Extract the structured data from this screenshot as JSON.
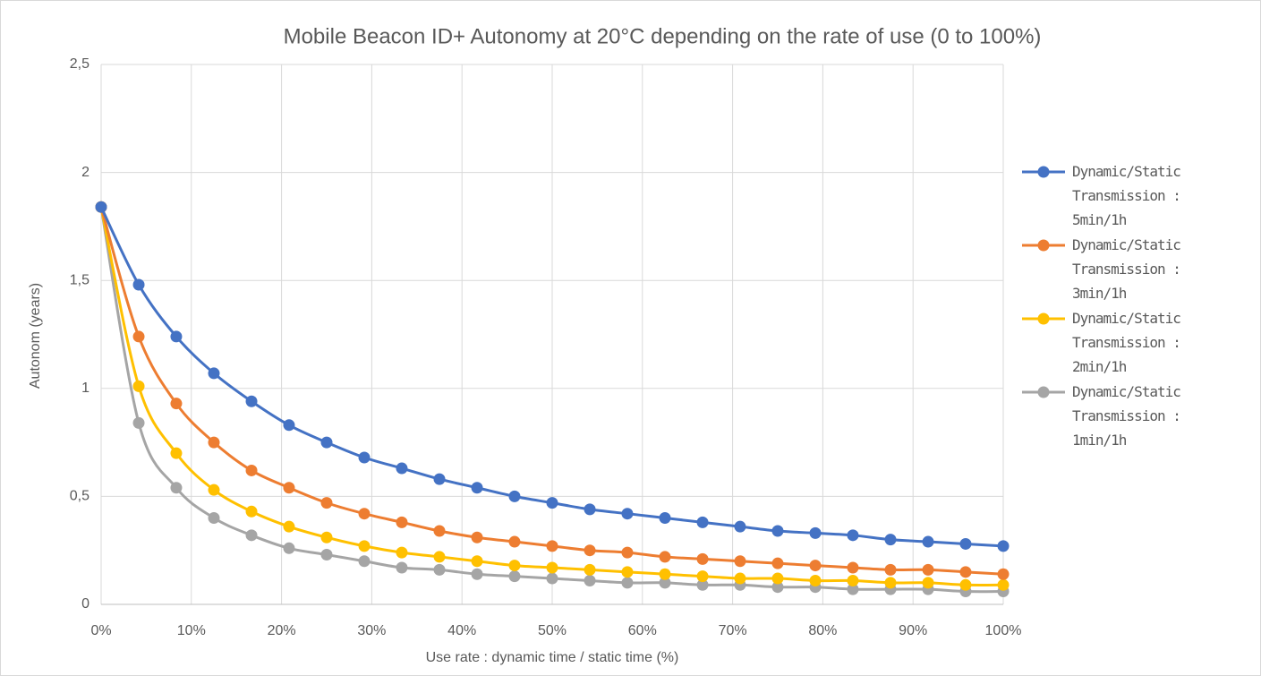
{
  "chart_data": {
    "type": "line",
    "title": "Mobile Beacon ID+ Autonomy at 20°C depending on the rate of use (0 to 100%)",
    "x_label": "Use rate : dynamic time / static time (%)",
    "y_label": "Autonom (years)",
    "x": [
      0,
      4.17,
      8.33,
      12.5,
      16.67,
      20.83,
      25,
      29.17,
      33.33,
      37.5,
      41.67,
      45.83,
      50,
      54.17,
      58.33,
      62.5,
      66.67,
      70.83,
      75,
      79.17,
      83.33,
      87.5,
      91.67,
      95.83,
      100
    ],
    "series": [
      {
        "name": "Dynamic/Static Transmission : 5min/1h",
        "color": "#4472c4",
        "values": [
          1.84,
          1.48,
          1.24,
          1.07,
          0.94,
          0.83,
          0.75,
          0.68,
          0.63,
          0.58,
          0.54,
          0.5,
          0.47,
          0.44,
          0.42,
          0.4,
          0.38,
          0.36,
          0.34,
          0.33,
          0.32,
          0.3,
          0.29,
          0.28,
          0.27
        ]
      },
      {
        "name": "Dynamic/Static Transmission : 3min/1h",
        "color": "#ed7d31",
        "values": [
          1.84,
          1.24,
          0.93,
          0.75,
          0.62,
          0.54,
          0.47,
          0.42,
          0.38,
          0.34,
          0.31,
          0.29,
          0.27,
          0.25,
          0.24,
          0.22,
          0.21,
          0.2,
          0.19,
          0.18,
          0.17,
          0.16,
          0.16,
          0.15,
          0.14
        ]
      },
      {
        "name": "Dynamic/Static Transmission : 2min/1h",
        "color": "#ffc000",
        "values": [
          1.84,
          1.01,
          0.7,
          0.53,
          0.43,
          0.36,
          0.31,
          0.27,
          0.24,
          0.22,
          0.2,
          0.18,
          0.17,
          0.16,
          0.15,
          0.14,
          0.13,
          0.12,
          0.12,
          0.11,
          0.11,
          0.1,
          0.1,
          0.09,
          0.09
        ]
      },
      {
        "name": "Dynamic/Static Transmission : 1min/1h",
        "color": "#a5a5a5",
        "values": [
          1.84,
          0.84,
          0.54,
          0.4,
          0.32,
          0.26,
          0.23,
          0.2,
          0.17,
          0.16,
          0.14,
          0.13,
          0.12,
          0.11,
          0.1,
          0.1,
          0.09,
          0.09,
          0.08,
          0.08,
          0.07,
          0.07,
          0.07,
          0.06,
          0.06
        ]
      }
    ],
    "xlim": [
      0,
      100
    ],
    "xticks": [
      {
        "value": 0,
        "label": "0%"
      },
      {
        "value": 10,
        "label": "10%"
      },
      {
        "value": 20,
        "label": "20%"
      },
      {
        "value": 30,
        "label": "30%"
      },
      {
        "value": 40,
        "label": "40%"
      },
      {
        "value": 50,
        "label": "50%"
      },
      {
        "value": 60,
        "label": "60%"
      },
      {
        "value": 70,
        "label": "70%"
      },
      {
        "value": 80,
        "label": "80%"
      },
      {
        "value": 90,
        "label": "90%"
      },
      {
        "value": 100,
        "label": "100%"
      }
    ],
    "ylim": [
      0,
      2.5
    ],
    "yticks": [
      0,
      {
        "value": 0.5,
        "label": "0,5"
      },
      1,
      {
        "value": 1.5,
        "label": "1,5"
      },
      2,
      {
        "value": 2.5,
        "label": "2,5"
      }
    ],
    "grid": true,
    "legend": "right"
  }
}
